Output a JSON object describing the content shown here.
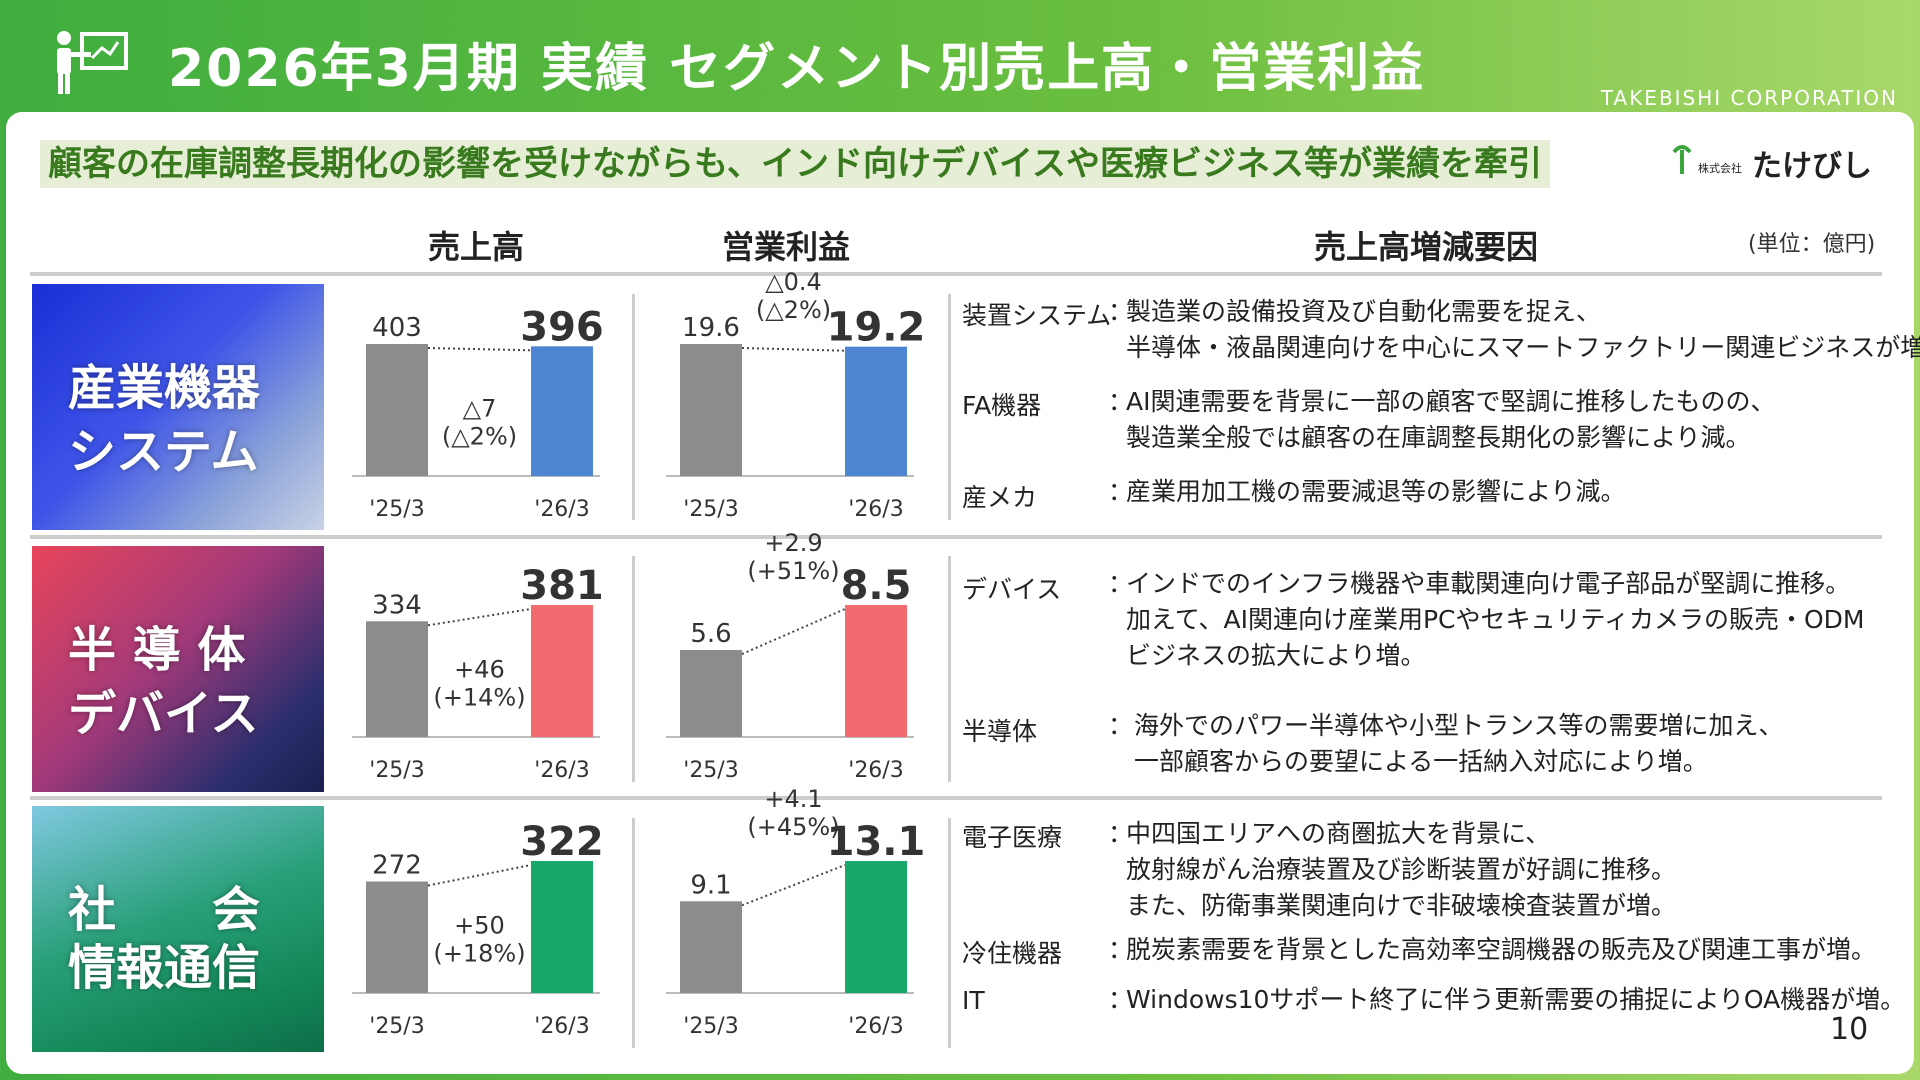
{
  "header": {
    "title": "2026年3月期 実績 セグメント別売上高・営業利益",
    "corp": "TAKEBISHI CORPORATION"
  },
  "banner": "顧客の在庫調整長期化の影響を受けながらも、インド向けデバイスや医療ビジネス等が業績を牽引",
  "logo": "株式会社 たけびし",
  "columns": {
    "sales": "売上高",
    "profit": "営業利益",
    "factors": "売上高増減要因",
    "unit": "(単位：億円)"
  },
  "segments": [
    {
      "title_line1": "産業機器",
      "title_line2": "システム",
      "sales": {
        "prev_label": "'25/3",
        "curr_label": "'26/3",
        "prev": "403",
        "curr": "396",
        "diff": "△7",
        "pct": "(△2%)"
      },
      "profit": {
        "prev_label": "'25/3",
        "curr_label": "'26/3",
        "prev": "19.6",
        "curr": "19.2",
        "diff": "△0.4",
        "pct": "(△2%)"
      },
      "reasons": [
        {
          "cat": "装置システム",
          "sep": "：",
          "lines": [
            "製造業の設備投資及び自動化需要を捉え、",
            "半導体・液晶関連向けを中心にスマートファクトリー関連ビジネスが増。"
          ]
        },
        {
          "cat": "FA機器",
          "sep": "：",
          "lines": [
            "AI関連需要を背景に一部の顧客で堅調に推移したものの、",
            "製造業全般では顧客の在庫調整長期化の影響により減。"
          ]
        },
        {
          "cat": "産メカ",
          "sep": "：",
          "lines": [
            "産業用加工機の需要減退等の影響により減。"
          ]
        }
      ]
    },
    {
      "title_line1": "半 導 体",
      "title_line2": "デバイス",
      "sales": {
        "prev_label": "'25/3",
        "curr_label": "'26/3",
        "prev": "334",
        "curr": "381",
        "diff": "+46",
        "pct": "(+14%)"
      },
      "profit": {
        "prev_label": "'25/3",
        "curr_label": "'26/3",
        "prev": "5.6",
        "curr": "8.5",
        "diff": "+2.9",
        "pct": "(+51%)"
      },
      "reasons": [
        {
          "cat": "デバイス",
          "sep": "：",
          "lines": [
            "インドでのインフラ機器や車載関連向け電子部品が堅調に推移。",
            "加えて、AI関連向け産業用PCやセキュリティカメラの販売・ODM",
            "ビジネスの拡大により増。"
          ]
        },
        {
          "cat": "半導体",
          "sep": "：",
          "lines": [
            "海外でのパワー半導体や小型トランス等の需要増に加え、",
            "一部顧客からの要望による一括納入対応により増。"
          ]
        }
      ]
    },
    {
      "title_line1": "社　　会",
      "title_line2": "情報通信",
      "sales": {
        "prev_label": "'25/3",
        "curr_label": "'26/3",
        "prev": "272",
        "curr": "322",
        "diff": "+50",
        "pct": "(+18%)"
      },
      "profit": {
        "prev_label": "'25/3",
        "curr_label": "'26/3",
        "prev": "9.1",
        "curr": "13.1",
        "diff": "+4.1",
        "pct": "(+45%)"
      },
      "reasons": [
        {
          "cat": "電子医療",
          "sep": "：",
          "lines": [
            "中四国エリアへの商圏拡大を背景に、",
            "放射線がん治療装置及び診断装置が好調に推移。",
            "また、防衛事業関連向けで非破壊検査装置が増。"
          ]
        },
        {
          "cat": "冷住機器",
          "sep": "：",
          "lines": [
            "脱炭素需要を背景とした高効率空調機器の販売及び関連工事が増。"
          ]
        },
        {
          "cat": "IT",
          "sep": "：",
          "lines": [
            "Windows10サポート終了に伴う更新需要の捕捉によりOA機器が増。"
          ]
        }
      ]
    }
  ],
  "chart_data": [
    {
      "type": "bar",
      "title": "",
      "categories": [
        "'25/3",
        "'26/3"
      ],
      "series": [
        {
          "values": [
            403,
            396
          ]
        }
      ],
      "annotation": "△7 (△2%)"
    },
    {
      "type": "bar",
      "title": "",
      "categories": [
        "'25/3",
        "'26/3"
      ],
      "series": [
        {
          "values": [
            19.6,
            19.2
          ]
        }
      ],
      "annotation": "△0.4 (△2%)"
    },
    {
      "type": "bar",
      "title": "",
      "categories": [
        "'25/3",
        "'26/3"
      ],
      "series": [
        {
          "values": [
            334,
            381
          ]
        }
      ],
      "annotation": "+46 (+14%)"
    },
    {
      "type": "bar",
      "title": "",
      "categories": [
        "'25/3",
        "'26/3"
      ],
      "series": [
        {
          "values": [
            5.6,
            8.5
          ]
        }
      ],
      "annotation": "+2.9 (+51%)"
    },
    {
      "type": "bar",
      "title": "",
      "categories": [
        "'25/3",
        "'26/3"
      ],
      "series": [
        {
          "values": [
            272,
            322
          ]
        }
      ],
      "annotation": "+50 (+18%)"
    },
    {
      "type": "bar",
      "title": "",
      "categories": [
        "'25/3",
        "'26/3"
      ],
      "series": [
        {
          "values": [
            9.1,
            13.1
          ]
        }
      ],
      "annotation": "+4.1 (+45%)"
    }
  ],
  "colors": {
    "prev_bar": "#8c8c8c",
    "seg1": "#4f86d3",
    "seg2": "#f26b6f",
    "seg3": "#17a86a"
  },
  "page_number": "10"
}
